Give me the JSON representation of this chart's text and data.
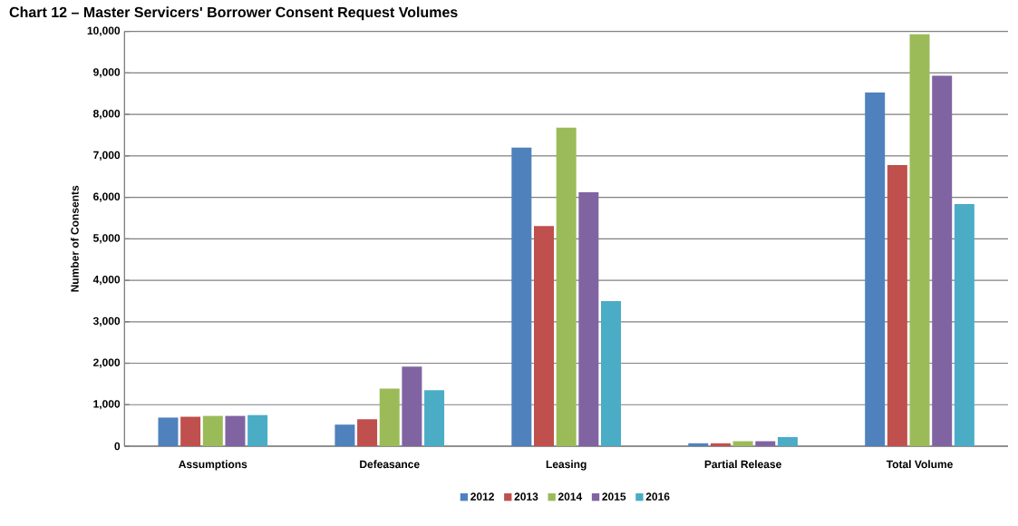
{
  "chart_data": {
    "type": "bar",
    "title": "Chart 12 – Master Servicers' Borrower Consent Request Volumes",
    "ylabel": "Number of Consents",
    "categories": [
      "Assumptions",
      "Defeasance",
      "Leasing",
      "Partial Release",
      "Total Volume"
    ],
    "series": [
      {
        "name": "2012",
        "color": "#4f81bd",
        "values": [
          690,
          520,
          7200,
          70,
          8530
        ]
      },
      {
        "name": "2013",
        "color": "#c0504d",
        "values": [
          710,
          650,
          5310,
          70,
          6780
        ]
      },
      {
        "name": "2014",
        "color": "#9bbb59",
        "values": [
          730,
          1390,
          7680,
          120,
          9930
        ]
      },
      {
        "name": "2015",
        "color": "#8064a2",
        "values": [
          730,
          1920,
          6120,
          120,
          8930
        ]
      },
      {
        "name": "2016",
        "color": "#4bacc6",
        "values": [
          750,
          1350,
          3500,
          220,
          5840
        ]
      }
    ],
    "ylim": [
      0,
      10000
    ],
    "yticks": [
      0,
      {
        "value": 1000,
        "label": "1,000"
      },
      {
        "value": 2000,
        "label": "2,000"
      },
      {
        "value": 3000,
        "label": "3,000"
      },
      {
        "value": 4000,
        "label": "4,000"
      },
      {
        "value": 5000,
        "label": "5,000"
      },
      {
        "value": 6000,
        "label": "6,000"
      },
      {
        "value": 7000,
        "label": "7,000"
      },
      {
        "value": 8000,
        "label": "8,000"
      },
      {
        "value": 9000,
        "label": "9,000"
      },
      {
        "value": 10000,
        "label": "10,000"
      }
    ],
    "grid": "y",
    "legend": "bottom"
  }
}
